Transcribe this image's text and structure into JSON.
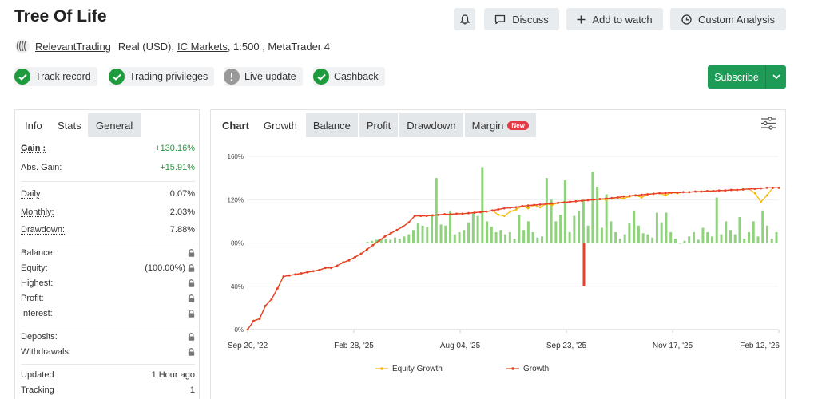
{
  "header": {
    "title": "Tree Of Life",
    "buttons": {
      "notify_label": "",
      "discuss_label": "Discuss",
      "watch_label": "Add to watch",
      "analysis_label": "Custom Analysis"
    }
  },
  "account": {
    "owner": "RelevantTrading",
    "type": "Real (USD),",
    "broker": "IC Markets",
    "details": ", 1:500 , MetaTrader 4"
  },
  "badges": [
    {
      "label": "Track record",
      "color": "#1e9b3c"
    },
    {
      "label": "Trading privileges",
      "color": "#1e9b3c"
    },
    {
      "label": "Live update",
      "color": "#999999"
    },
    {
      "label": "Cashback",
      "color": "#1e9b3c"
    }
  ],
  "subscribe": {
    "label": "Subscribe"
  },
  "left_tabs": [
    "Info",
    "Stats",
    "General"
  ],
  "stats": {
    "gain": {
      "label": "Gain :",
      "value": "+130.16%"
    },
    "abs_gain": {
      "label": "Abs. Gain:",
      "value": "+15.91%"
    },
    "daily": {
      "label": "Daily",
      "value": "0.07%"
    },
    "monthly": {
      "label": "Monthly:",
      "value": "2.03%"
    },
    "drawdown": {
      "label": "Drawdown:",
      "value": "7.88%"
    },
    "balance": {
      "label": "Balance:"
    },
    "equity": {
      "label": "Equity:",
      "value": "(100.00%)"
    },
    "highest": {
      "label": "Highest:"
    },
    "profit": {
      "label": "Profit:"
    },
    "interest": {
      "label": "Interest:"
    },
    "deposits": {
      "label": "Deposits:"
    },
    "withdrawals": {
      "label": "Withdrawals:"
    },
    "updated": {
      "label": "Updated",
      "value": "1 Hour ago"
    },
    "tracking": {
      "label": "Tracking",
      "value": "1"
    }
  },
  "chart_tabs": [
    {
      "label": "Chart"
    },
    {
      "label": "Growth"
    },
    {
      "label": "Balance"
    },
    {
      "label": "Profit"
    },
    {
      "label": "Drawdown"
    },
    {
      "label": "Margin",
      "badge": "New"
    }
  ],
  "colors": {
    "growth_line": "#e8402a",
    "equity_line": "#f5b800",
    "bars": "#90d27e",
    "negative_bar": "#e8402a",
    "accent_green": "#1e9b57"
  },
  "chart_data": {
    "type": "line",
    "x_ticks": [
      "Sep 20, '22",
      "Feb 28, '25",
      "Aug 04, '25",
      "Sep 23, '25",
      "Nov 17, '25",
      "Feb 12, '26"
    ],
    "y_ticks": [
      "0%",
      "40%",
      "80%",
      "120%",
      "160%"
    ],
    "ylim": [
      0,
      160
    ],
    "legend": [
      {
        "name": "Equity Growth",
        "color": "#f5b800"
      },
      {
        "name": "Growth",
        "color": "#e8402a"
      }
    ],
    "legend_position": "bottom",
    "grid": true,
    "growth": [
      0,
      8,
      10,
      22,
      28,
      38,
      49,
      50,
      51,
      52,
      53,
      54,
      55,
      57,
      57,
      59,
      62,
      64,
      67,
      70,
      74,
      78,
      82,
      86,
      89,
      92,
      95,
      99,
      105,
      105,
      105,
      105.5,
      106,
      106.5,
      106.5,
      107,
      107,
      107.5,
      108,
      108.5,
      109,
      110,
      111,
      112,
      112.5,
      113,
      114,
      114.5,
      115,
      115.5,
      116,
      116.5,
      117,
      117.5,
      118,
      118.5,
      119,
      119.5,
      120,
      120.5,
      121,
      121.5,
      122,
      123,
      123.5,
      124,
      124.5,
      125,
      125.5,
      126,
      126,
      126.5,
      126.5,
      127,
      127,
      127.5,
      127.5,
      128,
      128,
      128.5,
      128.5,
      129,
      129,
      129.5,
      130,
      130,
      130.5,
      131,
      131,
      131
    ],
    "equity_growth": [
      0,
      8,
      10,
      22,
      28,
      38,
      49,
      50,
      51,
      52,
      53,
      54,
      55,
      57,
      57,
      59,
      62,
      64,
      67,
      70,
      74,
      78,
      82,
      86,
      89,
      92,
      95,
      99,
      105,
      105,
      105,
      105.5,
      106,
      106.5,
      106.5,
      107,
      107,
      107.5,
      108,
      108.5,
      109,
      110,
      106,
      105,
      109,
      111,
      114,
      112,
      115,
      113,
      116,
      115,
      117,
      117.5,
      118,
      118.5,
      119,
      119.5,
      120,
      120.5,
      120,
      121,
      122,
      121,
      123,
      124,
      122,
      125,
      125.5,
      126,
      124,
      126.5,
      126,
      127,
      127,
      127.5,
      127.5,
      128,
      128,
      128.5,
      128.5,
      129,
      129,
      129.5,
      130,
      126,
      118,
      124,
      131,
      131
    ],
    "bars": [
      81,
      82,
      83,
      84,
      84,
      83,
      85,
      84,
      86,
      88,
      92,
      98,
      96,
      95,
      106,
      140,
      97,
      96,
      110,
      88,
      90,
      92,
      99,
      108,
      105,
      150,
      100,
      95,
      90,
      92,
      88,
      90,
      84,
      106,
      92,
      100,
      90,
      85,
      86,
      140,
      120,
      100,
      106,
      138,
      90,
      105,
      110,
      120,
      96,
      146,
      132,
      94,
      125,
      100,
      90,
      84,
      88,
      98,
      110,
      96,
      89,
      88,
      85,
      108,
      99,
      108,
      90,
      84,
      80,
      82,
      86,
      90,
      83,
      94,
      90,
      86,
      122,
      88,
      100,
      92,
      88,
      104,
      84,
      90,
      100,
      86,
      110,
      96,
      84,
      90
    ],
    "negative_bar": 40
  }
}
